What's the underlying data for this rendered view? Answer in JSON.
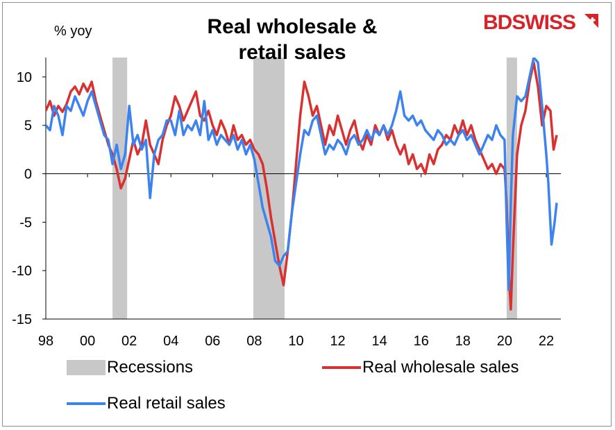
{
  "chart_data": {
    "type": "line",
    "title": "Real wholesale & retail sales",
    "title_lines": [
      "Real wholesale &",
      "retail sales"
    ],
    "ylabel": "% yoy",
    "xlabel": "",
    "ylim": [
      -15,
      12
    ],
    "yticks": [
      10,
      5,
      0,
      -5,
      -10,
      -15
    ],
    "xlim": [
      1998,
      2022.7
    ],
    "xticks": [
      1998,
      2000,
      2002,
      2004,
      2006,
      2008,
      2010,
      2012,
      2014,
      2016,
      2018,
      2020,
      2022
    ],
    "xtick_labels": [
      "98",
      "00",
      "02",
      "04",
      "06",
      "08",
      "10",
      "12",
      "14",
      "16",
      "18",
      "20",
      "22"
    ],
    "recessions": [
      [
        2001.2,
        2001.9
      ],
      [
        2007.95,
        2009.45
      ],
      [
        2020.1,
        2020.6
      ]
    ],
    "series": [
      {
        "name": "Real wholesale sales",
        "color": "#d93030",
        "points": [
          [
            1998.0,
            6.5
          ],
          [
            1998.2,
            7.5
          ],
          [
            1998.4,
            6.0
          ],
          [
            1998.6,
            7.0
          ],
          [
            1998.8,
            6.4
          ],
          [
            1999.0,
            7.2
          ],
          [
            1999.2,
            8.5
          ],
          [
            1999.4,
            9.0
          ],
          [
            1999.6,
            8.2
          ],
          [
            1999.8,
            9.3
          ],
          [
            2000.0,
            8.5
          ],
          [
            2000.2,
            9.5
          ],
          [
            2000.4,
            7.5
          ],
          [
            2000.6,
            6.0
          ],
          [
            2000.8,
            4.5
          ],
          [
            2001.0,
            3.0
          ],
          [
            2001.2,
            2.0
          ],
          [
            2001.4,
            0.5
          ],
          [
            2001.6,
            -1.5
          ],
          [
            2001.8,
            -0.5
          ],
          [
            2002.0,
            1.5
          ],
          [
            2002.2,
            3.5
          ],
          [
            2002.4,
            2.0
          ],
          [
            2002.6,
            3.0
          ],
          [
            2002.8,
            5.5
          ],
          [
            2003.0,
            3.0
          ],
          [
            2003.2,
            2.0
          ],
          [
            2003.4,
            1.0
          ],
          [
            2003.6,
            3.5
          ],
          [
            2003.8,
            5.0
          ],
          [
            2004.0,
            6.0
          ],
          [
            2004.2,
            8.0
          ],
          [
            2004.4,
            7.0
          ],
          [
            2004.6,
            5.5
          ],
          [
            2004.8,
            6.5
          ],
          [
            2005.0,
            7.5
          ],
          [
            2005.2,
            8.5
          ],
          [
            2005.4,
            6.0
          ],
          [
            2005.6,
            5.5
          ],
          [
            2005.8,
            6.5
          ],
          [
            2006.0,
            5.0
          ],
          [
            2006.2,
            4.0
          ],
          [
            2006.4,
            5.5
          ],
          [
            2006.6,
            4.5
          ],
          [
            2006.8,
            3.0
          ],
          [
            2007.0,
            5.0
          ],
          [
            2007.2,
            3.5
          ],
          [
            2007.4,
            4.0
          ],
          [
            2007.6,
            3.0
          ],
          [
            2007.8,
            3.5
          ],
          [
            2008.0,
            2.5
          ],
          [
            2008.2,
            2.0
          ],
          [
            2008.4,
            1.0
          ],
          [
            2008.6,
            -1.5
          ],
          [
            2008.8,
            -4.5
          ],
          [
            2009.0,
            -7.0
          ],
          [
            2009.2,
            -9.5
          ],
          [
            2009.4,
            -11.5
          ],
          [
            2009.6,
            -8.0
          ],
          [
            2009.8,
            -4.0
          ],
          [
            2010.0,
            1.0
          ],
          [
            2010.2,
            6.0
          ],
          [
            2010.4,
            9.5
          ],
          [
            2010.6,
            8.0
          ],
          [
            2010.8,
            6.0
          ],
          [
            2011.0,
            7.0
          ],
          [
            2011.2,
            5.0
          ],
          [
            2011.4,
            3.0
          ],
          [
            2011.6,
            5.0
          ],
          [
            2011.8,
            4.0
          ],
          [
            2012.0,
            6.0
          ],
          [
            2012.2,
            4.5
          ],
          [
            2012.4,
            3.0
          ],
          [
            2012.6,
            4.5
          ],
          [
            2012.8,
            5.5
          ],
          [
            2013.0,
            3.5
          ],
          [
            2013.2,
            2.5
          ],
          [
            2013.4,
            4.0
          ],
          [
            2013.6,
            3.0
          ],
          [
            2013.8,
            5.0
          ],
          [
            2014.0,
            4.0
          ],
          [
            2014.2,
            5.0
          ],
          [
            2014.4,
            3.5
          ],
          [
            2014.6,
            4.5
          ],
          [
            2014.8,
            3.0
          ],
          [
            2015.0,
            2.0
          ],
          [
            2015.2,
            3.0
          ],
          [
            2015.4,
            1.0
          ],
          [
            2015.6,
            2.0
          ],
          [
            2015.8,
            0.5
          ],
          [
            2016.0,
            1.0
          ],
          [
            2016.2,
            0.0
          ],
          [
            2016.4,
            2.0
          ],
          [
            2016.6,
            1.0
          ],
          [
            2016.8,
            2.5
          ],
          [
            2017.0,
            3.0
          ],
          [
            2017.2,
            4.0
          ],
          [
            2017.4,
            3.5
          ],
          [
            2017.6,
            5.0
          ],
          [
            2017.8,
            4.0
          ],
          [
            2018.0,
            5.5
          ],
          [
            2018.2,
            4.0
          ],
          [
            2018.4,
            5.0
          ],
          [
            2018.6,
            3.5
          ],
          [
            2018.8,
            2.5
          ],
          [
            2019.0,
            1.5
          ],
          [
            2019.2,
            0.5
          ],
          [
            2019.4,
            1.0
          ],
          [
            2019.6,
            0.0
          ],
          [
            2019.8,
            1.0
          ],
          [
            2020.0,
            0.5
          ],
          [
            2020.1,
            -3.0
          ],
          [
            2020.2,
            -10.0
          ],
          [
            2020.3,
            -14.0
          ],
          [
            2020.4,
            -8.0
          ],
          [
            2020.6,
            2.0
          ],
          [
            2020.8,
            5.0
          ],
          [
            2021.0,
            6.5
          ],
          [
            2021.2,
            9.5
          ],
          [
            2021.4,
            11.5
          ],
          [
            2021.6,
            9.0
          ],
          [
            2021.8,
            5.0
          ],
          [
            2022.0,
            7.0
          ],
          [
            2022.2,
            6.5
          ],
          [
            2022.35,
            2.5
          ],
          [
            2022.5,
            4.0
          ]
        ]
      },
      {
        "name": "Real retail sales",
        "color": "#3c83f0",
        "points": [
          [
            1998.0,
            5.0
          ],
          [
            1998.2,
            4.5
          ],
          [
            1998.4,
            7.0
          ],
          [
            1998.6,
            6.0
          ],
          [
            1998.8,
            4.0
          ],
          [
            1999.0,
            7.0
          ],
          [
            1999.2,
            6.5
          ],
          [
            1999.4,
            8.0
          ],
          [
            1999.6,
            7.0
          ],
          [
            1999.8,
            6.0
          ],
          [
            2000.0,
            7.5
          ],
          [
            2000.2,
            8.5
          ],
          [
            2000.4,
            7.0
          ],
          [
            2000.6,
            5.5
          ],
          [
            2000.8,
            4.0
          ],
          [
            2001.0,
            3.5
          ],
          [
            2001.2,
            1.0
          ],
          [
            2001.4,
            3.0
          ],
          [
            2001.6,
            0.5
          ],
          [
            2001.8,
            2.0
          ],
          [
            2002.0,
            7.0
          ],
          [
            2002.2,
            3.0
          ],
          [
            2002.4,
            4.0
          ],
          [
            2002.6,
            2.5
          ],
          [
            2002.8,
            3.5
          ],
          [
            2003.0,
            -2.5
          ],
          [
            2003.2,
            2.0
          ],
          [
            2003.4,
            3.5
          ],
          [
            2003.6,
            4.0
          ],
          [
            2003.8,
            5.5
          ],
          [
            2004.0,
            5.5
          ],
          [
            2004.2,
            4.0
          ],
          [
            2004.4,
            6.5
          ],
          [
            2004.6,
            4.0
          ],
          [
            2004.8,
            5.0
          ],
          [
            2005.0,
            4.5
          ],
          [
            2005.2,
            5.5
          ],
          [
            2005.4,
            4.0
          ],
          [
            2005.6,
            7.5
          ],
          [
            2005.8,
            3.5
          ],
          [
            2006.0,
            4.5
          ],
          [
            2006.2,
            3.0
          ],
          [
            2006.4,
            4.0
          ],
          [
            2006.6,
            3.5
          ],
          [
            2006.8,
            3.0
          ],
          [
            2007.0,
            4.0
          ],
          [
            2007.2,
            2.5
          ],
          [
            2007.4,
            3.5
          ],
          [
            2007.6,
            2.0
          ],
          [
            2007.8,
            3.0
          ],
          [
            2008.0,
            1.5
          ],
          [
            2008.2,
            -1.0
          ],
          [
            2008.4,
            -3.5
          ],
          [
            2008.6,
            -5.0
          ],
          [
            2008.8,
            -6.5
          ],
          [
            2009.0,
            -9.0
          ],
          [
            2009.2,
            -9.5
          ],
          [
            2009.4,
            -8.5
          ],
          [
            2009.6,
            -8.0
          ],
          [
            2009.8,
            -4.0
          ],
          [
            2010.0,
            -1.0
          ],
          [
            2010.2,
            2.0
          ],
          [
            2010.4,
            4.5
          ],
          [
            2010.6,
            4.0
          ],
          [
            2010.8,
            5.5
          ],
          [
            2011.0,
            6.0
          ],
          [
            2011.2,
            4.0
          ],
          [
            2011.4,
            2.0
          ],
          [
            2011.6,
            3.0
          ],
          [
            2011.8,
            2.5
          ],
          [
            2012.0,
            3.5
          ],
          [
            2012.2,
            3.0
          ],
          [
            2012.4,
            2.0
          ],
          [
            2012.6,
            3.5
          ],
          [
            2012.8,
            4.0
          ],
          [
            2013.0,
            3.0
          ],
          [
            2013.2,
            3.5
          ],
          [
            2013.4,
            4.5
          ],
          [
            2013.6,
            3.5
          ],
          [
            2013.8,
            4.5
          ],
          [
            2014.0,
            4.0
          ],
          [
            2014.2,
            5.0
          ],
          [
            2014.4,
            4.0
          ],
          [
            2014.6,
            5.0
          ],
          [
            2014.8,
            6.5
          ],
          [
            2015.0,
            8.5
          ],
          [
            2015.2,
            6.0
          ],
          [
            2015.4,
            5.5
          ],
          [
            2015.6,
            6.0
          ],
          [
            2015.8,
            5.0
          ],
          [
            2016.0,
            5.5
          ],
          [
            2016.2,
            4.5
          ],
          [
            2016.4,
            4.0
          ],
          [
            2016.6,
            3.5
          ],
          [
            2016.8,
            4.5
          ],
          [
            2017.0,
            4.0
          ],
          [
            2017.2,
            3.0
          ],
          [
            2017.4,
            3.5
          ],
          [
            2017.6,
            3.0
          ],
          [
            2017.8,
            4.0
          ],
          [
            2018.0,
            4.5
          ],
          [
            2018.2,
            3.5
          ],
          [
            2018.4,
            4.0
          ],
          [
            2018.6,
            3.0
          ],
          [
            2018.8,
            2.0
          ],
          [
            2019.0,
            3.0
          ],
          [
            2019.2,
            4.0
          ],
          [
            2019.4,
            3.5
          ],
          [
            2019.6,
            5.0
          ],
          [
            2019.8,
            4.0
          ],
          [
            2020.0,
            3.5
          ],
          [
            2020.1,
            -5.0
          ],
          [
            2020.2,
            -12.0
          ],
          [
            2020.3,
            -3.0
          ],
          [
            2020.4,
            4.0
          ],
          [
            2020.6,
            8.0
          ],
          [
            2020.8,
            7.5
          ],
          [
            2021.0,
            8.0
          ],
          [
            2021.2,
            10.0
          ],
          [
            2021.4,
            12.0
          ],
          [
            2021.6,
            11.5
          ],
          [
            2021.8,
            7.0
          ],
          [
            2022.0,
            2.0
          ],
          [
            2022.1,
            -1.0
          ],
          [
            2022.25,
            -7.3
          ],
          [
            2022.4,
            -5.0
          ],
          [
            2022.5,
            -3.0
          ]
        ]
      }
    ],
    "legend": [
      {
        "label": "Recessions",
        "kind": "box",
        "color": "#c8c8c8"
      },
      {
        "label": "Real wholesale sales",
        "kind": "line",
        "color": "#d93030"
      },
      {
        "label": "Real retail sales",
        "kind": "line",
        "color": "#3c83f0"
      }
    ]
  },
  "brand": {
    "part1": "BD",
    "part2": "SWISS",
    "color": "#d6232a"
  }
}
